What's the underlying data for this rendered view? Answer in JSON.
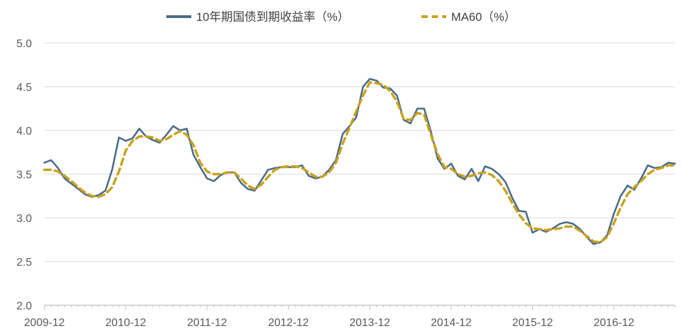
{
  "chart_data": {
    "type": "line",
    "title": "",
    "xlabel": "",
    "ylabel": "",
    "ylim": [
      2.0,
      5.0
    ],
    "y_ticks": [
      "5.0",
      "4.5",
      "4.0",
      "3.5",
      "3.0",
      "2.5",
      "2.0"
    ],
    "x_ticks": [
      "2009-12",
      "2010-12",
      "2011-12",
      "2012-12",
      "2013-12",
      "2014-12",
      "2015-12",
      "2016-12"
    ],
    "grid": "horizontal",
    "legend_position": "top",
    "colors": {
      "yield": "#4a6b8a",
      "ma60": "#c9a21a"
    },
    "series": [
      {
        "name": "10年期国债到期收益率（%）",
        "style": "solid",
        "points": [
          [
            "2009-12",
            3.63
          ],
          [
            "2010-01",
            3.66
          ],
          [
            "2010-02",
            3.57
          ],
          [
            "2010-03",
            3.45
          ],
          [
            "2010-04",
            3.39
          ],
          [
            "2010-05",
            3.33
          ],
          [
            "2010-06",
            3.27
          ],
          [
            "2010-07",
            3.24
          ],
          [
            "2010-08",
            3.26
          ],
          [
            "2010-09",
            3.31
          ],
          [
            "2010-10",
            3.55
          ],
          [
            "2010-11",
            3.92
          ],
          [
            "2010-12",
            3.88
          ],
          [
            "2011-01",
            3.91
          ],
          [
            "2011-02",
            4.02
          ],
          [
            "2011-03",
            3.93
          ],
          [
            "2011-04",
            3.89
          ],
          [
            "2011-05",
            3.86
          ],
          [
            "2011-06",
            3.95
          ],
          [
            "2011-07",
            4.05
          ],
          [
            "2011-08",
            4.0
          ],
          [
            "2011-09",
            4.02
          ],
          [
            "2011-10",
            3.72
          ],
          [
            "2011-11",
            3.58
          ],
          [
            "2011-12",
            3.45
          ],
          [
            "2012-01",
            3.42
          ],
          [
            "2012-02",
            3.49
          ],
          [
            "2012-03",
            3.52
          ],
          [
            "2012-04",
            3.52
          ],
          [
            "2012-05",
            3.4
          ],
          [
            "2012-06",
            3.33
          ],
          [
            "2012-07",
            3.31
          ],
          [
            "2012-08",
            3.43
          ],
          [
            "2012-09",
            3.55
          ],
          [
            "2012-10",
            3.57
          ],
          [
            "2012-11",
            3.58
          ],
          [
            "2012-12",
            3.58
          ],
          [
            "2013-01",
            3.58
          ],
          [
            "2013-02",
            3.6
          ],
          [
            "2013-03",
            3.48
          ],
          [
            "2013-04",
            3.45
          ],
          [
            "2013-05",
            3.47
          ],
          [
            "2013-06",
            3.55
          ],
          [
            "2013-07",
            3.66
          ],
          [
            "2013-08",
            3.96
          ],
          [
            "2013-09",
            4.05
          ],
          [
            "2013-10",
            4.15
          ],
          [
            "2013-11",
            4.5
          ],
          [
            "2013-12",
            4.59
          ],
          [
            "2014-01",
            4.57
          ],
          [
            "2014-02",
            4.49
          ],
          [
            "2014-03",
            4.48
          ],
          [
            "2014-04",
            4.4
          ],
          [
            "2014-05",
            4.12
          ],
          [
            "2014-06",
            4.08
          ],
          [
            "2014-07",
            4.25
          ],
          [
            "2014-08",
            4.25
          ],
          [
            "2014-09",
            3.99
          ],
          [
            "2014-10",
            3.68
          ],
          [
            "2014-11",
            3.56
          ],
          [
            "2014-12",
            3.62
          ],
          [
            "2015-01",
            3.48
          ],
          [
            "2015-02",
            3.44
          ],
          [
            "2015-03",
            3.56
          ],
          [
            "2015-04",
            3.42
          ],
          [
            "2015-05",
            3.59
          ],
          [
            "2015-06",
            3.56
          ],
          [
            "2015-07",
            3.5
          ],
          [
            "2015-08",
            3.41
          ],
          [
            "2015-09",
            3.23
          ],
          [
            "2015-10",
            3.08
          ],
          [
            "2015-11",
            3.07
          ],
          [
            "2015-12",
            2.83
          ],
          [
            "2016-01",
            2.87
          ],
          [
            "2016-02",
            2.84
          ],
          [
            "2016-03",
            2.88
          ],
          [
            "2016-04",
            2.93
          ],
          [
            "2016-05",
            2.95
          ],
          [
            "2016-06",
            2.93
          ],
          [
            "2016-07",
            2.87
          ],
          [
            "2016-08",
            2.78
          ],
          [
            "2016-09",
            2.7
          ],
          [
            "2016-10",
            2.72
          ],
          [
            "2016-11",
            2.8
          ],
          [
            "2016-12",
            3.05
          ],
          [
            "2017-01",
            3.25
          ],
          [
            "2017-02",
            3.37
          ],
          [
            "2017-03",
            3.32
          ],
          [
            "2017-04",
            3.45
          ],
          [
            "2017-05",
            3.6
          ],
          [
            "2017-06",
            3.57
          ],
          [
            "2017-07",
            3.58
          ],
          [
            "2017-08",
            3.63
          ],
          [
            "2017-09",
            3.62
          ]
        ]
      },
      {
        "name": "MA60（%）",
        "style": "dashed",
        "points": [
          [
            "2009-12",
            3.55
          ],
          [
            "2010-01",
            3.55
          ],
          [
            "2010-02",
            3.53
          ],
          [
            "2010-03",
            3.48
          ],
          [
            "2010-04",
            3.42
          ],
          [
            "2010-05",
            3.35
          ],
          [
            "2010-06",
            3.29
          ],
          [
            "2010-07",
            3.25
          ],
          [
            "2010-08",
            3.24
          ],
          [
            "2010-09",
            3.27
          ],
          [
            "2010-10",
            3.35
          ],
          [
            "2010-11",
            3.53
          ],
          [
            "2010-12",
            3.77
          ],
          [
            "2011-01",
            3.88
          ],
          [
            "2011-02",
            3.93
          ],
          [
            "2011-03",
            3.93
          ],
          [
            "2011-04",
            3.92
          ],
          [
            "2011-05",
            3.88
          ],
          [
            "2011-06",
            3.9
          ],
          [
            "2011-07",
            3.95
          ],
          [
            "2011-08",
            3.99
          ],
          [
            "2011-09",
            3.95
          ],
          [
            "2011-10",
            3.83
          ],
          [
            "2011-11",
            3.63
          ],
          [
            "2011-12",
            3.53
          ],
          [
            "2012-01",
            3.5
          ],
          [
            "2012-02",
            3.5
          ],
          [
            "2012-03",
            3.52
          ],
          [
            "2012-04",
            3.52
          ],
          [
            "2012-05",
            3.45
          ],
          [
            "2012-06",
            3.37
          ],
          [
            "2012-07",
            3.33
          ],
          [
            "2012-08",
            3.38
          ],
          [
            "2012-09",
            3.47
          ],
          [
            "2012-10",
            3.55
          ],
          [
            "2012-11",
            3.58
          ],
          [
            "2012-12",
            3.59
          ],
          [
            "2013-01",
            3.59
          ],
          [
            "2013-02",
            3.57
          ],
          [
            "2013-03",
            3.52
          ],
          [
            "2013-04",
            3.47
          ],
          [
            "2013-05",
            3.47
          ],
          [
            "2013-06",
            3.52
          ],
          [
            "2013-07",
            3.63
          ],
          [
            "2013-08",
            3.85
          ],
          [
            "2013-09",
            4.03
          ],
          [
            "2013-10",
            4.22
          ],
          [
            "2013-11",
            4.4
          ],
          [
            "2013-12",
            4.55
          ],
          [
            "2014-01",
            4.54
          ],
          [
            "2014-02",
            4.52
          ],
          [
            "2014-03",
            4.45
          ],
          [
            "2014-04",
            4.33
          ],
          [
            "2014-05",
            4.13
          ],
          [
            "2014-06",
            4.12
          ],
          [
            "2014-07",
            4.2
          ],
          [
            "2014-08",
            4.18
          ],
          [
            "2014-09",
            3.95
          ],
          [
            "2014-10",
            3.73
          ],
          [
            "2014-11",
            3.58
          ],
          [
            "2014-12",
            3.56
          ],
          [
            "2015-01",
            3.5
          ],
          [
            "2015-02",
            3.47
          ],
          [
            "2015-03",
            3.48
          ],
          [
            "2015-04",
            3.51
          ],
          [
            "2015-05",
            3.52
          ],
          [
            "2015-06",
            3.49
          ],
          [
            "2015-07",
            3.42
          ],
          [
            "2015-08",
            3.31
          ],
          [
            "2015-09",
            3.17
          ],
          [
            "2015-10",
            3.04
          ],
          [
            "2015-11",
            2.94
          ],
          [
            "2015-12",
            2.88
          ],
          [
            "2016-01",
            2.87
          ],
          [
            "2016-02",
            2.86
          ],
          [
            "2016-03",
            2.87
          ],
          [
            "2016-04",
            2.88
          ],
          [
            "2016-05",
            2.9
          ],
          [
            "2016-06",
            2.9
          ],
          [
            "2016-07",
            2.85
          ],
          [
            "2016-08",
            2.79
          ],
          [
            "2016-09",
            2.73
          ],
          [
            "2016-10",
            2.72
          ],
          [
            "2016-11",
            2.78
          ],
          [
            "2016-12",
            2.94
          ],
          [
            "2017-01",
            3.12
          ],
          [
            "2017-02",
            3.27
          ],
          [
            "2017-03",
            3.35
          ],
          [
            "2017-04",
            3.42
          ],
          [
            "2017-05",
            3.5
          ],
          [
            "2017-06",
            3.55
          ],
          [
            "2017-07",
            3.57
          ],
          [
            "2017-08",
            3.6
          ],
          [
            "2017-09",
            3.6
          ]
        ]
      }
    ]
  }
}
